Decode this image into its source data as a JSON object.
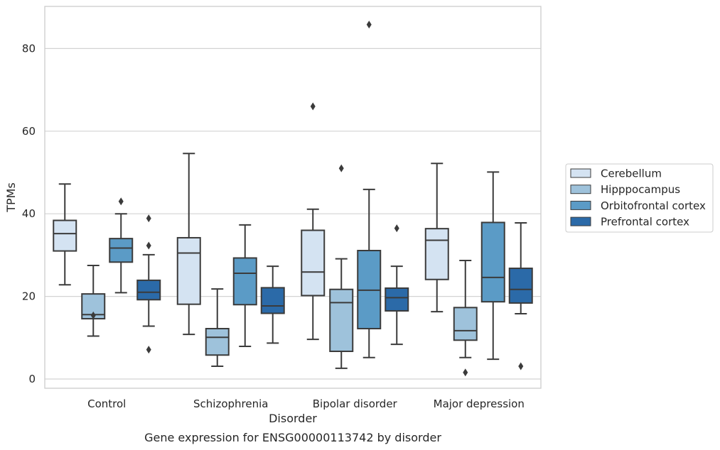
{
  "chart_data": {
    "type": "box",
    "title": "Gene expression for ENSG00000113742 by disorder",
    "xlabel": "Disorder",
    "ylabel": "TPMs",
    "ylim": [
      -2,
      90
    ],
    "yticks": [
      0,
      20,
      40,
      60,
      80
    ],
    "grid": "horizontal",
    "legend_position": "right",
    "categories": [
      "Control",
      "Schizophrenia",
      "Bipolar disorder",
      "Major depression"
    ],
    "series": [
      {
        "name": "Cerebellum",
        "color": "#d4e3f2",
        "boxes": [
          {
            "whisker_low": 22.8,
            "q1": 31.0,
            "median": 35.2,
            "q3": 38.4,
            "whisker_high": 47.2,
            "outliers": []
          },
          {
            "whisker_low": 10.8,
            "q1": 18.1,
            "median": 30.5,
            "q3": 34.2,
            "whisker_high": 54.6,
            "outliers": []
          },
          {
            "whisker_low": 9.6,
            "q1": 20.2,
            "median": 25.9,
            "q3": 36.0,
            "whisker_high": 41.1,
            "outliers": [
              66.0
            ]
          },
          {
            "whisker_low": 16.3,
            "q1": 24.1,
            "median": 33.6,
            "q3": 36.4,
            "whisker_high": 52.2,
            "outliers": []
          }
        ]
      },
      {
        "name": "Hipppocampus",
        "color": "#9ec2db",
        "boxes": [
          {
            "whisker_low": 10.4,
            "q1": 14.6,
            "median": 15.6,
            "q3": 20.6,
            "whisker_high": 27.5,
            "outliers": [
              15.4
            ]
          },
          {
            "whisker_low": 3.1,
            "q1": 5.8,
            "median": 10.1,
            "q3": 12.2,
            "whisker_high": 21.8,
            "outliers": []
          },
          {
            "whisker_low": 2.6,
            "q1": 6.7,
            "median": 18.5,
            "q3": 21.7,
            "whisker_high": 29.1,
            "outliers": [
              51.0
            ]
          },
          {
            "whisker_low": 5.2,
            "q1": 9.4,
            "median": 11.7,
            "q3": 17.3,
            "whisker_high": 28.7,
            "outliers": [
              1.6
            ]
          }
        ]
      },
      {
        "name": "Orbitofrontal cortex",
        "color": "#5b9bc6",
        "boxes": [
          {
            "whisker_low": 20.9,
            "q1": 28.3,
            "median": 31.7,
            "q3": 34.0,
            "whisker_high": 40.0,
            "outliers": [
              43.0
            ]
          },
          {
            "whisker_low": 7.9,
            "q1": 18.0,
            "median": 25.6,
            "q3": 29.3,
            "whisker_high": 37.3,
            "outliers": []
          },
          {
            "whisker_low": 5.2,
            "q1": 12.2,
            "median": 21.5,
            "q3": 31.1,
            "whisker_high": 45.9,
            "outliers": [
              85.8
            ]
          },
          {
            "whisker_low": 4.8,
            "q1": 18.7,
            "median": 24.6,
            "q3": 37.9,
            "whisker_high": 50.1,
            "outliers": []
          }
        ]
      },
      {
        "name": "Prefrontal cortex",
        "color": "#2b6aa8",
        "boxes": [
          {
            "whisker_low": 12.8,
            "q1": 19.2,
            "median": 21.0,
            "q3": 23.9,
            "whisker_high": 30.1,
            "outliers": [
              38.9,
              32.3,
              7.1
            ]
          },
          {
            "whisker_low": 8.7,
            "q1": 15.9,
            "median": 17.7,
            "q3": 22.1,
            "whisker_high": 27.3,
            "outliers": []
          },
          {
            "whisker_low": 8.4,
            "q1": 16.5,
            "median": 19.7,
            "q3": 22.0,
            "whisker_high": 27.3,
            "outliers": [
              36.5
            ]
          },
          {
            "whisker_low": 15.8,
            "q1": 18.4,
            "median": 21.7,
            "q3": 26.8,
            "whisker_high": 37.8,
            "outliers": [
              3.1
            ]
          }
        ]
      }
    ]
  }
}
